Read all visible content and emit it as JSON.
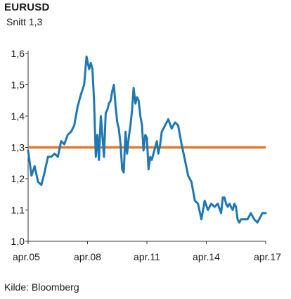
{
  "header": {
    "title": "EURUSD",
    "subtitle": "Snitt 1,3"
  },
  "footer": {
    "source": "Kilde: Bloomberg"
  },
  "chart_data": {
    "type": "line",
    "title": "EURUSD",
    "subtitle": "Snitt 1,3",
    "xlabel": "",
    "ylabel": "",
    "ylim": [
      1.0,
      1.6
    ],
    "yticks": [
      1.0,
      1.1,
      1.2,
      1.3,
      1.4,
      1.5,
      1.6
    ],
    "ytick_labels": [
      "1,0",
      "1,1",
      "1,2",
      "1,3",
      "1,4",
      "1,5",
      "1,6"
    ],
    "xlim": [
      2005.25,
      2017.25
    ],
    "xticks": [
      2005.25,
      2008.25,
      2011.25,
      2014.25,
      2017.25
    ],
    "xtick_labels": [
      "apr.05",
      "apr.08",
      "apr.11",
      "apr.14",
      "apr.17"
    ],
    "grid": false,
    "colors": {
      "series": "#1f77b4",
      "reference": "#e07b2a",
      "axis": "#333333"
    },
    "series": [
      {
        "x": [
          2005.25,
          2005.42,
          2005.58,
          2005.75,
          2005.92,
          2006.08,
          2006.25,
          2006.42,
          2006.58,
          2006.75,
          2006.92,
          2007.08,
          2007.25,
          2007.42,
          2007.58,
          2007.75,
          2007.92,
          2008.08,
          2008.2,
          2008.33,
          2008.42,
          2008.5,
          2008.58,
          2008.67,
          2008.75,
          2008.83,
          2008.92,
          2009.0,
          2009.08,
          2009.17,
          2009.25,
          2009.33,
          2009.42,
          2009.5,
          2009.58,
          2009.67,
          2009.75,
          2009.83,
          2009.92,
          2010.0,
          2010.08,
          2010.17,
          2010.25,
          2010.33,
          2010.42,
          2010.5,
          2010.58,
          2010.67,
          2010.75,
          2010.83,
          2010.92,
          2011.0,
          2011.08,
          2011.17,
          2011.25,
          2011.33,
          2011.42,
          2011.5,
          2011.58,
          2011.67,
          2011.75,
          2011.83,
          2011.92,
          2012.0,
          2012.17,
          2012.33,
          2012.5,
          2012.67,
          2012.83,
          2013.0,
          2013.17,
          2013.33,
          2013.5,
          2013.67,
          2013.83,
          2014.0,
          2014.17,
          2014.33,
          2014.5,
          2014.67,
          2014.83,
          2015.0,
          2015.08,
          2015.17,
          2015.25,
          2015.33,
          2015.42,
          2015.5,
          2015.58,
          2015.67,
          2015.75,
          2015.83,
          2015.92,
          2016.0,
          2016.17,
          2016.33,
          2016.5,
          2016.67,
          2016.83,
          2016.92,
          2017.0,
          2017.08,
          2017.25
        ],
        "values": [
          1.29,
          1.21,
          1.24,
          1.19,
          1.18,
          1.22,
          1.27,
          1.27,
          1.28,
          1.27,
          1.32,
          1.31,
          1.34,
          1.35,
          1.37,
          1.43,
          1.47,
          1.5,
          1.59,
          1.55,
          1.57,
          1.55,
          1.45,
          1.27,
          1.34,
          1.26,
          1.4,
          1.34,
          1.27,
          1.41,
          1.42,
          1.44,
          1.45,
          1.48,
          1.5,
          1.43,
          1.38,
          1.36,
          1.31,
          1.23,
          1.22,
          1.35,
          1.28,
          1.33,
          1.37,
          1.42,
          1.49,
          1.44,
          1.46,
          1.45,
          1.4,
          1.37,
          1.29,
          1.34,
          1.33,
          1.23,
          1.27,
          1.26,
          1.28,
          1.3,
          1.32,
          1.28,
          1.31,
          1.35,
          1.37,
          1.39,
          1.36,
          1.38,
          1.37,
          1.31,
          1.26,
          1.21,
          1.19,
          1.13,
          1.12,
          1.07,
          1.13,
          1.1,
          1.12,
          1.11,
          1.12,
          1.09,
          1.14,
          1.14,
          1.12,
          1.11,
          1.12,
          1.11,
          1.1,
          1.12,
          1.11,
          1.07,
          1.06,
          1.07,
          1.07,
          1.07,
          1.09,
          1.07,
          1.06,
          1.07,
          1.08,
          1.09,
          1.09
        ]
      }
    ],
    "reference_line": {
      "y": 1.3
    }
  }
}
